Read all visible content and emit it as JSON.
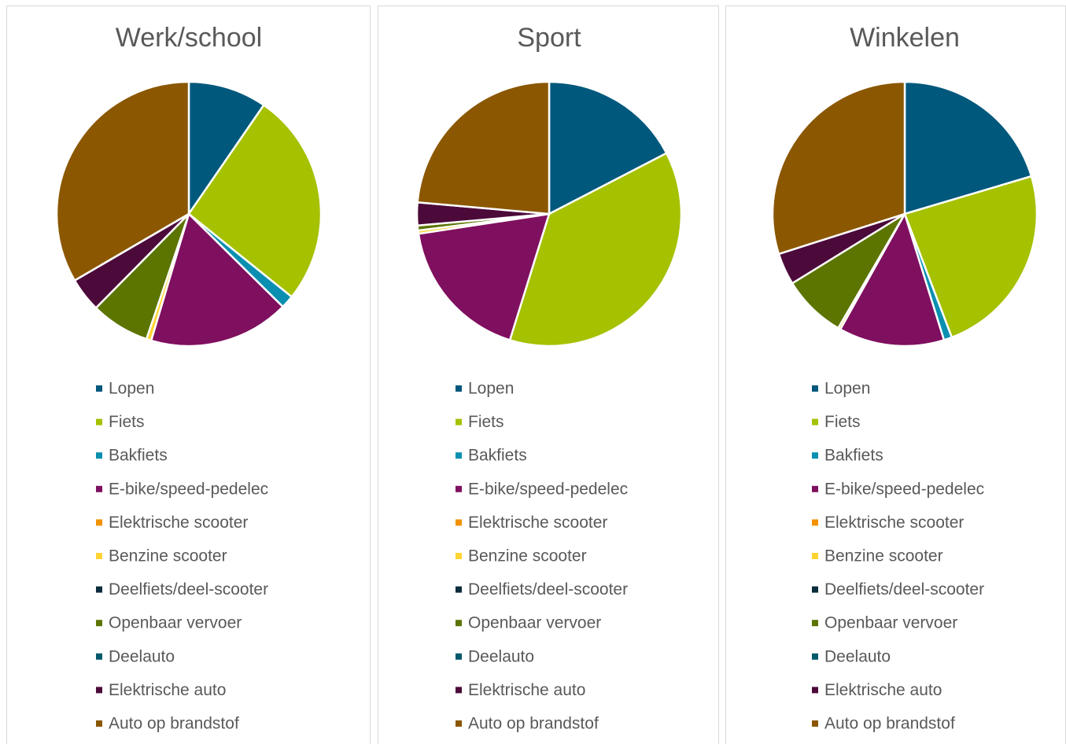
{
  "chart_data": [
    {
      "type": "pie",
      "title": "Werk/school",
      "categories": [
        "Lopen",
        "Fiets",
        "Bakfiets",
        "E-bike/speed-pedelec",
        "Elektrische scooter",
        "Benzine scooter",
        "Deelfiets/deel-scooter",
        "Openbaar vervoer",
        "Deelauto",
        "Elektrische auto",
        "Auto op brandstof"
      ],
      "values": [
        9.6,
        26.2,
        1.6,
        17.2,
        0,
        0.6,
        0,
        7.2,
        0,
        4.2,
        33.4
      ],
      "colors": [
        "#00587c",
        "#a5c100",
        "#0a8fb0",
        "#7f0f5f",
        "#f39200",
        "#ffd433",
        "#0b2c3c",
        "#5c7400",
        "#00596a",
        "#4b0a3a",
        "#8b5700"
      ]
    },
    {
      "type": "pie",
      "title": "Sport",
      "categories": [
        "Lopen",
        "Fiets",
        "Bakfiets",
        "E-bike/speed-pedelec",
        "Elektrische scooter",
        "Benzine scooter",
        "Deelfiets/deel-scooter",
        "Openbaar vervoer",
        "Deelauto",
        "Elektrische auto",
        "Auto op brandstof"
      ],
      "values": [
        17.4,
        37.4,
        0,
        17.8,
        0,
        0.4,
        0,
        0.6,
        0,
        2.8,
        23.6
      ],
      "colors": [
        "#00587c",
        "#a5c100",
        "#0a8fb0",
        "#7f0f5f",
        "#f39200",
        "#ffd433",
        "#0b2c3c",
        "#5c7400",
        "#00596a",
        "#4b0a3a",
        "#8b5700"
      ]
    },
    {
      "type": "pie",
      "title": "Winkelen",
      "categories": [
        "Lopen",
        "Fiets",
        "Bakfiets",
        "E-bike/speed-pedelec",
        "Elektrische scooter",
        "Benzine scooter",
        "Deelfiets/deel-scooter",
        "Openbaar vervoer",
        "Deelauto",
        "Elektrische auto",
        "Auto op brandstof"
      ],
      "values": [
        20.4,
        23.8,
        1.0,
        12.9,
        0,
        0.3,
        0,
        7.8,
        0,
        3.9,
        29.9
      ],
      "colors": [
        "#00587c",
        "#a5c100",
        "#0a8fb0",
        "#7f0f5f",
        "#f39200",
        "#ffd433",
        "#0b2c3c",
        "#5c7400",
        "#00596a",
        "#4b0a3a",
        "#8b5700"
      ]
    }
  ]
}
